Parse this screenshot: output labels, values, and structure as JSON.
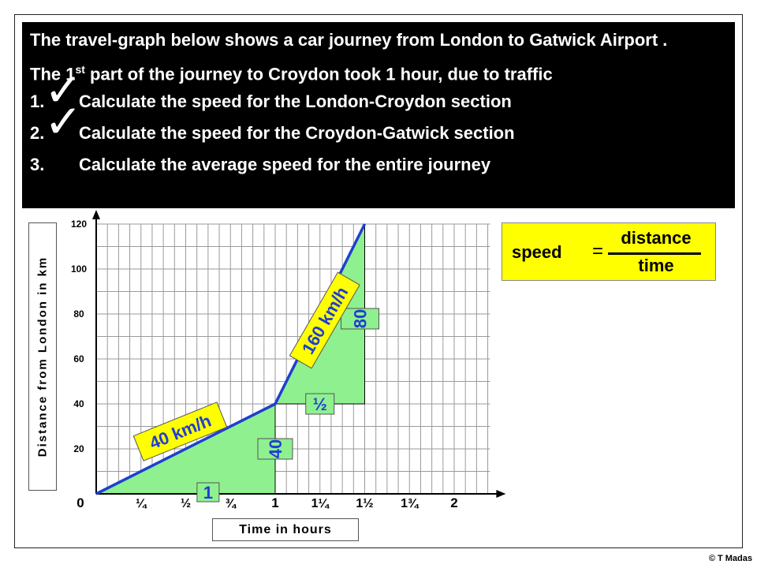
{
  "header": {
    "intro": "The travel-graph below shows a car journey from London to Gatwick Airport .",
    "part_text_before": "The 1",
    "part_sup": "st",
    "part_text_after": " part of the journey to Croydon took 1 hour, due to traffic",
    "questions": [
      {
        "num": "1.",
        "text": "Calculate the speed for the London-Croydon section",
        "ticked": true
      },
      {
        "num": "2.",
        "text": "Calculate the speed for the Croydon-Gatwick section",
        "ticked": true
      },
      {
        "num": "3.",
        "text": "Calculate the average speed for the entire journey",
        "ticked": false
      }
    ],
    "tick_symbol": "✓"
  },
  "formula": {
    "lhs": "speed",
    "equals": "=",
    "numerator": "distance",
    "denominator": "time"
  },
  "copyright": "© T Madas",
  "chart_data": {
    "type": "line",
    "xlabel": "Time in hours",
    "ylabel": "Distance from London in km",
    "x_ticks": [
      {
        "value": 0,
        "label": "0"
      },
      {
        "value": 0.25,
        "label": "¼"
      },
      {
        "value": 0.5,
        "label": "½"
      },
      {
        "value": 0.75,
        "label": "¾"
      },
      {
        "value": 1,
        "label": "1"
      },
      {
        "value": 1.25,
        "label": "1¼"
      },
      {
        "value": 1.5,
        "label": "1½"
      },
      {
        "value": 1.75,
        "label": "1¾"
      },
      {
        "value": 2,
        "label": "2"
      }
    ],
    "y_ticks": [
      {
        "value": 20,
        "label": "20"
      },
      {
        "value": 40,
        "label": "40"
      },
      {
        "value": 60,
        "label": "60"
      },
      {
        "value": 80,
        "label": "80"
      },
      {
        "value": 100,
        "label": "100"
      },
      {
        "value": 120,
        "label": "120"
      }
    ],
    "xlim": [
      0,
      2.2
    ],
    "ylim": [
      0,
      120
    ],
    "grid": true,
    "series": [
      {
        "points": [
          {
            "x": 0,
            "y": 0
          },
          {
            "x": 1,
            "y": 40
          },
          {
            "x": 1.5,
            "y": 120
          }
        ],
        "color": "#1f3fd1"
      }
    ],
    "triangles": [
      {
        "points": [
          {
            "x": 0,
            "y": 0
          },
          {
            "x": 1,
            "y": 40
          },
          {
            "x": 1,
            "y": 0
          }
        ],
        "color": "#8ff08f"
      },
      {
        "points": [
          {
            "x": 1,
            "y": 40
          },
          {
            "x": 1.5,
            "y": 120
          },
          {
            "x": 1.5,
            "y": 40
          }
        ],
        "color": "#8ff08f"
      }
    ],
    "annotations": [
      {
        "text": "1",
        "x": 0.625,
        "y": 0,
        "color": "#8ff08f"
      },
      {
        "text": "40",
        "x": 1,
        "y": 20,
        "color": "#8ff08f"
      },
      {
        "text": "½",
        "x": 1.25,
        "y": 40,
        "color": "#8ff08f"
      },
      {
        "text": "80",
        "x": 1.5,
        "y": 80,
        "color": "#8ff08f"
      },
      {
        "text": "40 km/h",
        "x": 0.5,
        "y": 20,
        "color": "#ffff00"
      },
      {
        "text": "160 km/h",
        "x": 1.25,
        "y": 80,
        "color": "#ffff00"
      }
    ]
  }
}
